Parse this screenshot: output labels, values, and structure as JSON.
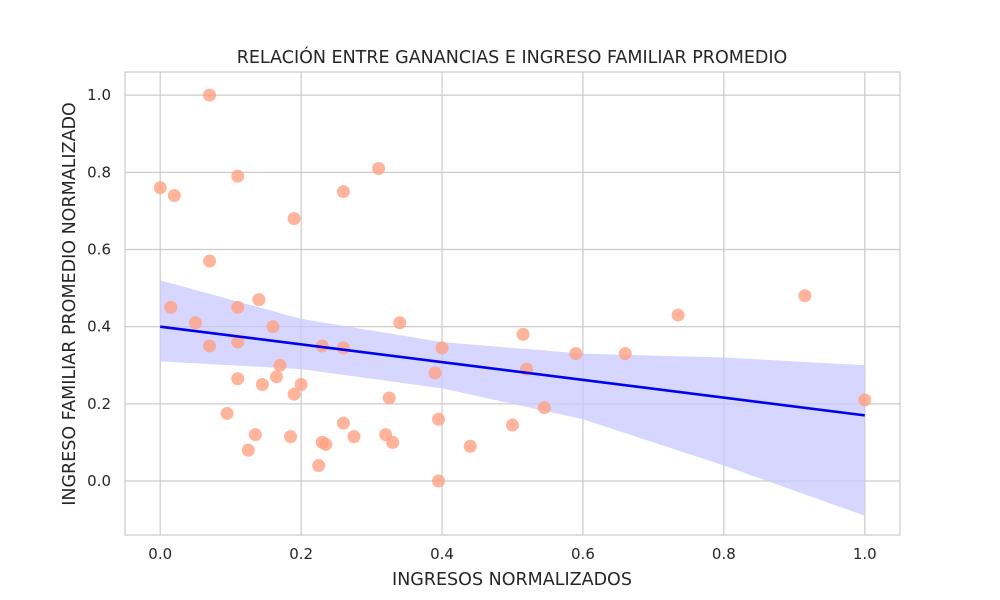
{
  "chart_data": {
    "type": "scatter",
    "title": "RELACIÓN ENTRE GANANCIAS E INGRESO FAMILIAR PROMEDIO",
    "xlabel": "INGRESOS NORMALIZADOS",
    "ylabel": "INGRESO FAMILIAR PROMEDIO NORMALIZADO",
    "xlim": [
      -0.05,
      1.05
    ],
    "ylim": [
      -0.14,
      1.06
    ],
    "x_ticks": [
      "0.0",
      "0.2",
      "0.4",
      "0.6",
      "0.8",
      "1.0"
    ],
    "y_ticks": [
      "0.0",
      "0.2",
      "0.4",
      "0.6",
      "0.8",
      "1.0"
    ],
    "grid": true,
    "points": [
      {
        "x": 0.0,
        "y": 0.76
      },
      {
        "x": 0.02,
        "y": 0.74
      },
      {
        "x": 0.07,
        "y": 1.0
      },
      {
        "x": 0.11,
        "y": 0.79
      },
      {
        "x": 0.31,
        "y": 0.81
      },
      {
        "x": 0.26,
        "y": 0.75
      },
      {
        "x": 0.19,
        "y": 0.68
      },
      {
        "x": 0.07,
        "y": 0.57
      },
      {
        "x": 0.14,
        "y": 0.47
      },
      {
        "x": 0.015,
        "y": 0.45
      },
      {
        "x": 0.11,
        "y": 0.45
      },
      {
        "x": 0.05,
        "y": 0.41
      },
      {
        "x": 0.16,
        "y": 0.4
      },
      {
        "x": 0.07,
        "y": 0.35
      },
      {
        "x": 0.11,
        "y": 0.36
      },
      {
        "x": 0.17,
        "y": 0.3
      },
      {
        "x": 0.23,
        "y": 0.35
      },
      {
        "x": 0.26,
        "y": 0.345
      },
      {
        "x": 0.34,
        "y": 0.41
      },
      {
        "x": 0.4,
        "y": 0.345
      },
      {
        "x": 0.515,
        "y": 0.38
      },
      {
        "x": 0.52,
        "y": 0.29
      },
      {
        "x": 0.59,
        "y": 0.33
      },
      {
        "x": 0.66,
        "y": 0.33
      },
      {
        "x": 0.735,
        "y": 0.43
      },
      {
        "x": 0.915,
        "y": 0.48
      },
      {
        "x": 1.0,
        "y": 0.21
      },
      {
        "x": 0.11,
        "y": 0.265
      },
      {
        "x": 0.145,
        "y": 0.25
      },
      {
        "x": 0.165,
        "y": 0.27
      },
      {
        "x": 0.2,
        "y": 0.25
      },
      {
        "x": 0.19,
        "y": 0.225
      },
      {
        "x": 0.095,
        "y": 0.175
      },
      {
        "x": 0.135,
        "y": 0.12
      },
      {
        "x": 0.125,
        "y": 0.08
      },
      {
        "x": 0.185,
        "y": 0.115
      },
      {
        "x": 0.23,
        "y": 0.1
      },
      {
        "x": 0.235,
        "y": 0.095
      },
      {
        "x": 0.225,
        "y": 0.04
      },
      {
        "x": 0.26,
        "y": 0.15
      },
      {
        "x": 0.275,
        "y": 0.115
      },
      {
        "x": 0.32,
        "y": 0.12
      },
      {
        "x": 0.325,
        "y": 0.215
      },
      {
        "x": 0.33,
        "y": 0.1
      },
      {
        "x": 0.39,
        "y": 0.28
      },
      {
        "x": 0.395,
        "y": 0.16
      },
      {
        "x": 0.44,
        "y": 0.09
      },
      {
        "x": 0.395,
        "y": 0.0
      },
      {
        "x": 0.5,
        "y": 0.145
      },
      {
        "x": 0.545,
        "y": 0.19
      }
    ],
    "regression": {
      "x": [
        0.0,
        1.0
      ],
      "y": [
        0.4,
        0.17
      ]
    },
    "confidence_band": {
      "x": [
        0.0,
        0.2,
        0.4,
        0.6,
        0.8,
        1.0
      ],
      "upper": [
        0.52,
        0.42,
        0.36,
        0.33,
        0.32,
        0.3
      ],
      "lower": [
        0.31,
        0.29,
        0.24,
        0.16,
        0.04,
        -0.09
      ]
    },
    "colors": {
      "points": "#ffa182",
      "line": "#0000ee",
      "band": "#c8c8ff",
      "grid": "#cccccc",
      "frame": "#cccccc"
    }
  }
}
